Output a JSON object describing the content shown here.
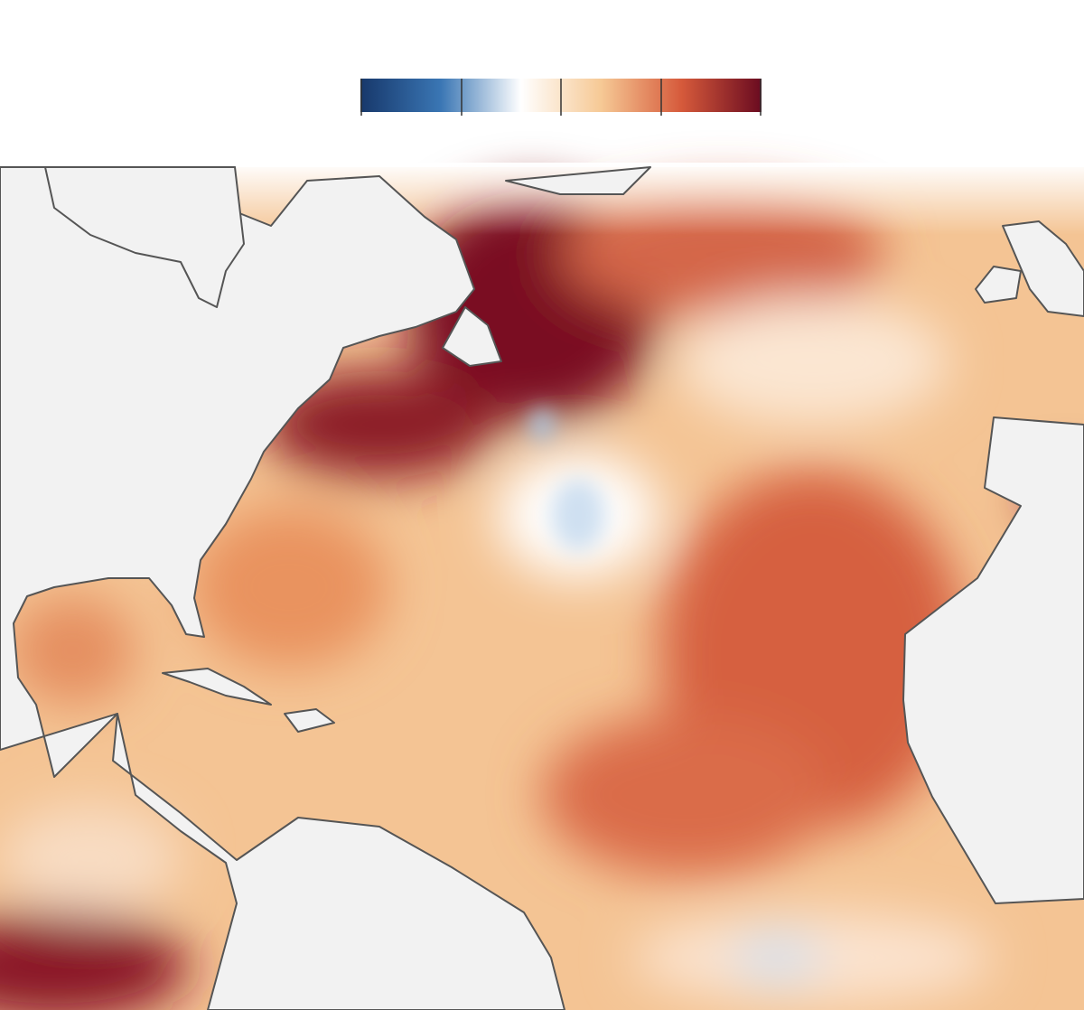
{
  "legend": {
    "colors": [
      "#17386b",
      "#3a76b4",
      "#ffffff",
      "#f6c995",
      "#d65a3b",
      "#6a0b20"
    ]
  }
}
